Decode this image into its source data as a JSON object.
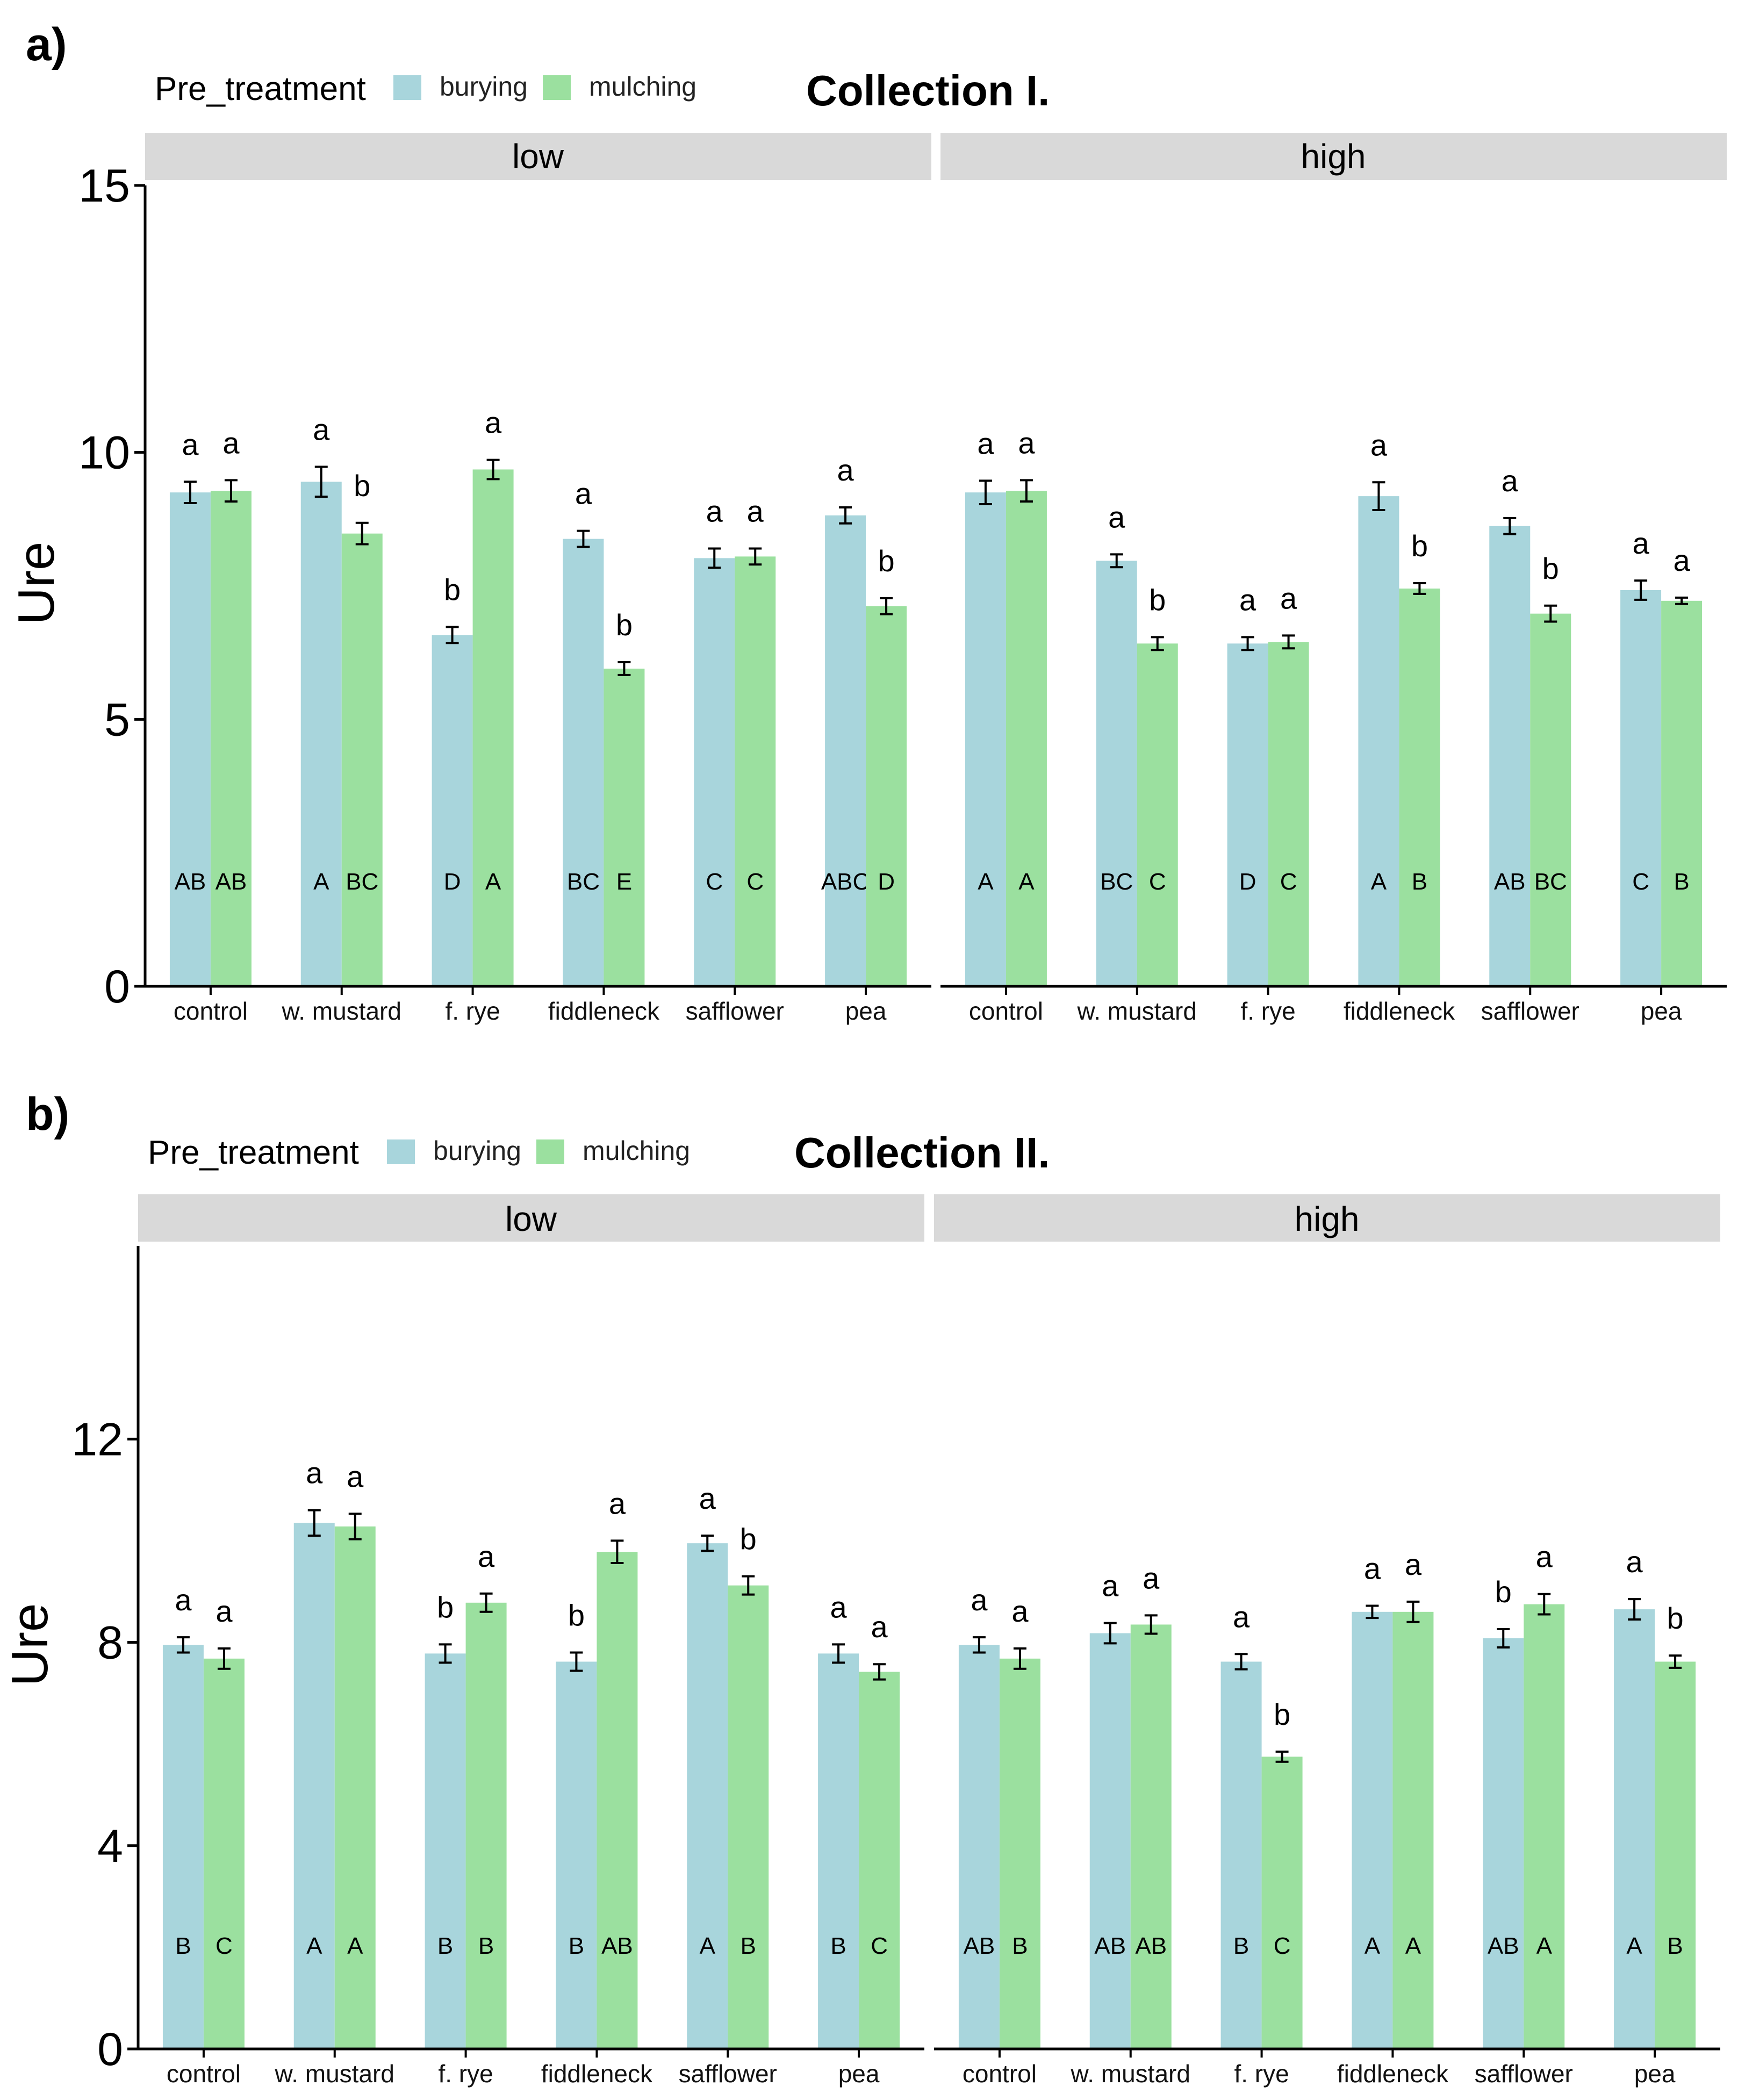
{
  "colors": {
    "burying": "#a8d5dc",
    "mulching": "#9be09f",
    "strip": "#d9d9d9",
    "axis": "#000000"
  },
  "chart_data": [
    {
      "panel_tag": "a)",
      "title": "Collection I.",
      "type": "bar",
      "legend": {
        "title": "Pre_treatment",
        "entries": [
          "burying",
          "mulching"
        ]
      },
      "ylabel": "Ure",
      "ylim": [
        0,
        15
      ],
      "yticks": [
        0,
        5,
        10,
        15
      ],
      "facets": [
        {
          "label": "low",
          "categories": [
            "control",
            "w. mustard",
            "f. rye",
            "fiddleneck",
            "safflower",
            "pea"
          ],
          "series": [
            {
              "name": "burying",
              "values": [
                9.25,
                9.45,
                6.58,
                8.38,
                8.02,
                8.82
              ],
              "errors": [
                0.2,
                0.28,
                0.15,
                0.15,
                0.18,
                0.15
              ],
              "letters": [
                "a",
                "a",
                "b",
                "a",
                "a",
                "a"
              ],
              "group_letters": [
                "AB",
                "A",
                "D",
                "BC",
                "C",
                "ABC"
              ]
            },
            {
              "name": "mulching",
              "values": [
                9.28,
                8.48,
                9.68,
                5.95,
                8.05,
                7.12
              ],
              "errors": [
                0.2,
                0.2,
                0.18,
                0.12,
                0.15,
                0.15
              ],
              "letters": [
                "a",
                "b",
                "a",
                "b",
                "a",
                "b"
              ],
              "group_letters": [
                "AB",
                "BC",
                "A",
                "E",
                "C",
                "D"
              ]
            }
          ]
        },
        {
          "label": "high",
          "categories": [
            "control",
            "w. mustard",
            "f. rye",
            "fiddleneck",
            "safflower",
            "pea"
          ],
          "series": [
            {
              "name": "burying",
              "values": [
                9.25,
                7.97,
                6.42,
                9.18,
                8.62,
                7.42
              ],
              "errors": [
                0.22,
                0.12,
                0.12,
                0.26,
                0.15,
                0.18
              ],
              "letters": [
                "a",
                "a",
                "a",
                "a",
                "a",
                "a"
              ],
              "group_letters": [
                "A",
                "BC",
                "D",
                "A",
                "AB",
                "C"
              ]
            },
            {
              "name": "mulching",
              "values": [
                9.28,
                6.42,
                6.45,
                7.45,
                6.98,
                7.22
              ],
              "errors": [
                0.2,
                0.12,
                0.12,
                0.1,
                0.15,
                0.06
              ],
              "letters": [
                "a",
                "b",
                "a",
                "b",
                "b",
                "a"
              ],
              "group_letters": [
                "A",
                "C",
                "C",
                "B",
                "BC",
                "B"
              ]
            }
          ]
        }
      ]
    },
    {
      "panel_tag": "b)",
      "title": "Collection II.",
      "type": "bar",
      "legend": {
        "title": "Pre_treatment",
        "entries": [
          "burying",
          "mulching"
        ]
      },
      "ylabel": "Ure",
      "ylim": [
        0,
        15.8
      ],
      "yticks": [
        0,
        4,
        8,
        12
      ],
      "facets": [
        {
          "label": "low",
          "categories": [
            "control",
            "w. mustard",
            "f. rye",
            "fiddleneck",
            "safflower",
            "pea"
          ],
          "series": [
            {
              "name": "burying",
              "values": [
                7.95,
                10.35,
                7.78,
                7.62,
                9.95,
                7.78
              ],
              "errors": [
                0.15,
                0.25,
                0.18,
                0.18,
                0.15,
                0.18
              ],
              "letters": [
                "a",
                "a",
                "b",
                "b",
                "a",
                "a"
              ],
              "group_letters": [
                "B",
                "A",
                "B",
                "B",
                "A",
                "B"
              ]
            },
            {
              "name": "mulching",
              "values": [
                7.68,
                10.28,
                8.78,
                9.78,
                9.12,
                7.42
              ],
              "errors": [
                0.2,
                0.25,
                0.18,
                0.22,
                0.18,
                0.15
              ],
              "letters": [
                "a",
                "a",
                "a",
                "a",
                "b",
                "a"
              ],
              "group_letters": [
                "C",
                "A",
                "B",
                "AB",
                "B",
                "C"
              ]
            }
          ]
        },
        {
          "label": "high",
          "categories": [
            "control",
            "w. mustard",
            "f. rye",
            "fiddleneck",
            "safflower",
            "pea"
          ],
          "series": [
            {
              "name": "burying",
              "values": [
                7.95,
                8.18,
                7.62,
                8.6,
                8.08,
                8.65
              ],
              "errors": [
                0.15,
                0.2,
                0.15,
                0.12,
                0.18,
                0.2
              ],
              "letters": [
                "a",
                "a",
                "a",
                "a",
                "b",
                "a"
              ],
              "group_letters": [
                "AB",
                "AB",
                "B",
                "A",
                "AB",
                "A"
              ]
            },
            {
              "name": "mulching",
              "values": [
                7.68,
                8.35,
                5.75,
                8.6,
                8.75,
                7.62
              ],
              "errors": [
                0.2,
                0.18,
                0.1,
                0.2,
                0.2,
                0.12
              ],
              "letters": [
                "a",
                "a",
                "b",
                "a",
                "a",
                "b"
              ],
              "group_letters": [
                "B",
                "AB",
                "C",
                "A",
                "A",
                "B"
              ]
            }
          ]
        }
      ]
    }
  ]
}
